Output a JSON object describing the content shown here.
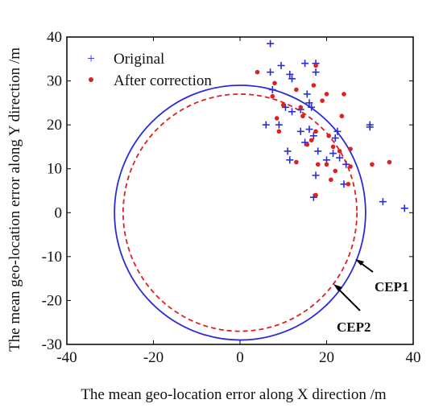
{
  "chart_data": {
    "type": "scatter",
    "xlabel": "The mean geo-location error along X direction /m",
    "ylabel": "The mean geo-location error along Y direction /m",
    "xlim": [
      -40,
      40
    ],
    "ylim": [
      -30,
      40
    ],
    "x_ticks": [
      "-40",
      "-20",
      "0",
      "20",
      "40"
    ],
    "y_ticks": [
      "-30",
      "-20",
      "-10",
      "0",
      "10",
      "20",
      "30",
      "40"
    ],
    "grid": false,
    "legend_position": "top-left",
    "series": [
      {
        "name": "Original",
        "marker": "plus",
        "color": "#2b2bd6",
        "points": [
          [
            7,
            38.5
          ],
          [
            7,
            32
          ],
          [
            9.5,
            33.5
          ],
          [
            11.5,
            31.5
          ],
          [
            12,
            30.5
          ],
          [
            15,
            34
          ],
          [
            17.5,
            34
          ],
          [
            17.5,
            32
          ],
          [
            15.5,
            27
          ],
          [
            16,
            25
          ],
          [
            16.5,
            24
          ],
          [
            14,
            23.5
          ],
          [
            12,
            23
          ],
          [
            6,
            20
          ],
          [
            9,
            20
          ],
          [
            10.5,
            24
          ],
          [
            7.5,
            28
          ],
          [
            14,
            18.5
          ],
          [
            16,
            19
          ],
          [
            17,
            17.5
          ],
          [
            15,
            16
          ],
          [
            18,
            14
          ],
          [
            21.5,
            13.5
          ],
          [
            22,
            17
          ],
          [
            22.5,
            18.5
          ],
          [
            23,
            12.5
          ],
          [
            20,
            12
          ],
          [
            24.5,
            11
          ],
          [
            11,
            14
          ],
          [
            11.5,
            12
          ],
          [
            17.5,
            8.5
          ],
          [
            24,
            6.5
          ],
          [
            17,
            3.5
          ],
          [
            30,
            20
          ],
          [
            30,
            19.5
          ],
          [
            33,
            2.5
          ],
          [
            38,
            1
          ]
        ]
      },
      {
        "name": "After correction",
        "marker": "dot",
        "color": "#e02020",
        "points": [
          [
            4,
            32
          ],
          [
            8,
            29.5
          ],
          [
            13,
            28
          ],
          [
            17.5,
            33.5
          ],
          [
            17,
            29
          ],
          [
            7.5,
            26.5
          ],
          [
            10,
            24.5
          ],
          [
            14,
            24
          ],
          [
            19,
            25.5
          ],
          [
            20,
            27
          ],
          [
            14.5,
            22
          ],
          [
            8.5,
            21.5
          ],
          [
            9,
            18.5
          ],
          [
            15.5,
            15.5
          ],
          [
            13,
            11.5
          ],
          [
            18,
            11
          ],
          [
            16.5,
            16.5
          ],
          [
            17.5,
            18.5
          ],
          [
            20.5,
            17.5
          ],
          [
            21.5,
            15
          ],
          [
            20,
            11
          ],
          [
            22,
            9.5
          ],
          [
            23,
            14
          ],
          [
            25.5,
            10.5
          ],
          [
            25,
            6.5
          ],
          [
            21,
            7.5
          ],
          [
            17.5,
            4
          ],
          [
            23.5,
            22
          ],
          [
            25.5,
            14.5
          ],
          [
            30.5,
            11
          ],
          [
            34.5,
            11.5
          ],
          [
            24,
            27
          ]
        ]
      }
    ],
    "circles": [
      {
        "name": "CEP1",
        "radius": 29,
        "color": "#2b2bd6",
        "style": "solid"
      },
      {
        "name": "CEP2",
        "radius": 27,
        "color": "#e02020",
        "style": "dashed"
      }
    ],
    "annotations": [
      "CEP1",
      "CEP2"
    ]
  }
}
